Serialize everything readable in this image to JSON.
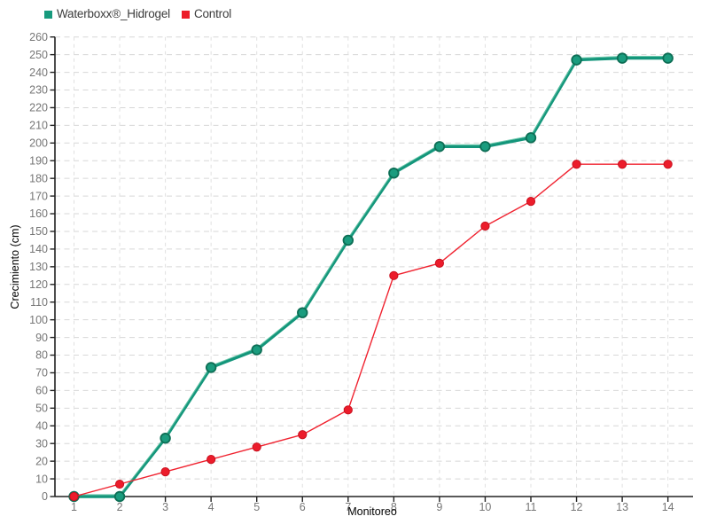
{
  "legend": {
    "items": [
      {
        "label": "Waterboxx®_Hidrogel",
        "color": "#179a7d"
      },
      {
        "label": "Control",
        "color": "#ec1c28"
      }
    ]
  },
  "chart_data": {
    "type": "line",
    "title": "",
    "xlabel": "Monitoreo",
    "ylabel": "Crecimiento (cm)",
    "x": [
      1,
      2,
      3,
      4,
      5,
      6,
      7,
      8,
      9,
      10,
      11,
      12,
      13,
      14
    ],
    "ylim": [
      0,
      260
    ],
    "ytick_step": 10,
    "grid": true,
    "legend_position": "top-left",
    "series": [
      {
        "name": "Waterboxx®_Hidrogel",
        "line_color": "#14967b",
        "echo_color": "#5ec3a4",
        "marker_fill": "#1a9c7e",
        "marker_stroke": "#0d6e55",
        "values": [
          0,
          0,
          33,
          73,
          83,
          104,
          145,
          183,
          198,
          198,
          203,
          247,
          248,
          248
        ]
      },
      {
        "name": "Control",
        "line_color": "#f0222f",
        "marker_fill": "#ec1c2b",
        "marker_stroke": "#c9111f",
        "values": [
          0,
          7,
          14,
          21,
          28,
          35,
          49,
          125,
          132,
          153,
          167,
          188,
          188,
          188
        ]
      }
    ],
    "axis_color": "#222222",
    "grid_color_h": "#d7d7d7",
    "grid_color_v": "#e0e0e0",
    "tick_label_color": "#767676",
    "axis_label_color": "#5f5f5f"
  }
}
